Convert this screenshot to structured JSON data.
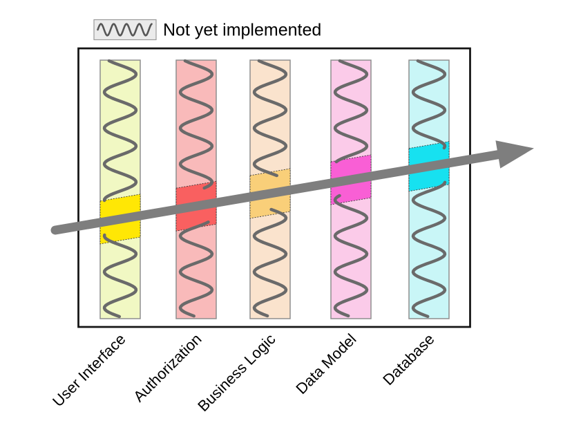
{
  "legend": {
    "label": "Not yet implemented"
  },
  "columns": [
    {
      "label": "User Interface",
      "bg": "#f1f8c3",
      "highlight": "#ffe705"
    },
    {
      "label": "Authorization",
      "bg": "#f9baba",
      "highlight": "#f96060"
    },
    {
      "label": "Business Logic",
      "bg": "#fae3cd",
      "highlight": "#f9cf79"
    },
    {
      "label": "Data Model",
      "bg": "#fbcbe9",
      "highlight": "#f95fd5"
    },
    {
      "label": "Database",
      "bg": "#c9f6f7",
      "highlight": "#17e1f0"
    }
  ],
  "styles": {
    "arrow_color": "#7e7e7e",
    "wave_color": "#6a6a6a",
    "column_border": "#8e8e8e",
    "highlight_border": "#3a3a3a",
    "box_border": "#141414",
    "box_fill": "#ffffff",
    "legend_box_bg": "#ebebeb",
    "legend_box_border": "#9a9a9a",
    "legend_wave_color": "#565656",
    "label_color": "#000000"
  }
}
